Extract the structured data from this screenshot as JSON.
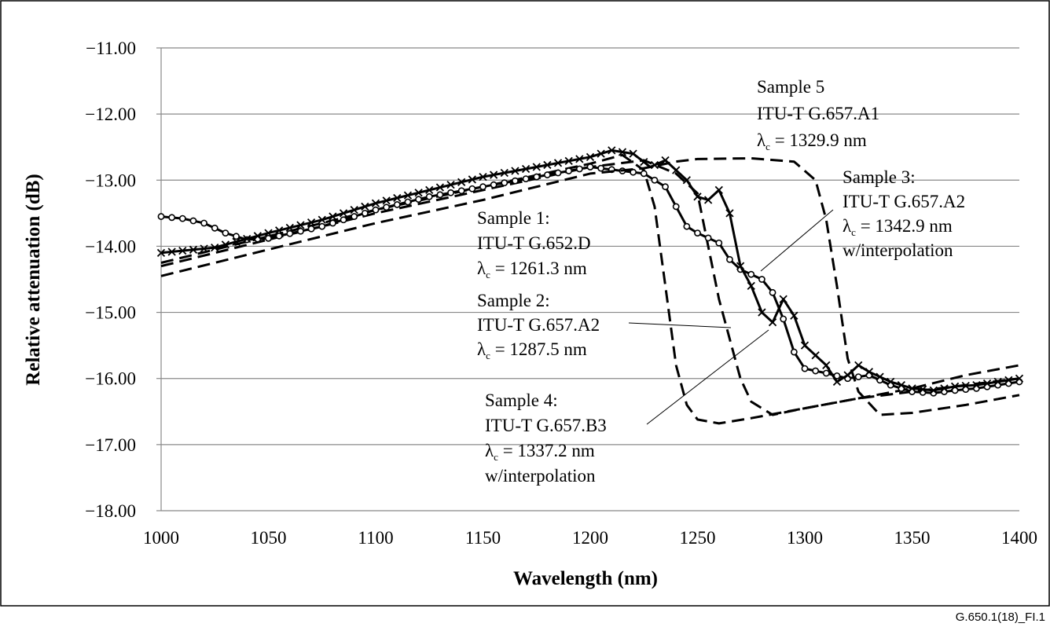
{
  "figure_id": "G.650.1(18)_FI.1",
  "chart_data": {
    "type": "line",
    "title": "",
    "xlabel": "Wavelength (nm)",
    "ylabel": "Relative attenuation (dB)",
    "xlim": [
      1000,
      1400
    ],
    "ylim": [
      -18,
      -11
    ],
    "x_ticks": [
      "1000",
      "1050",
      "1100",
      "1150",
      "1200",
      "1250",
      "1300",
      "1350",
      "1400"
    ],
    "y_ticks": [
      "−18.00",
      "−17.00",
      "−16.00",
      "−15.00",
      "−14.00",
      "−13.00",
      "−12.00",
      "−11.00"
    ],
    "grid": "horizontal",
    "series": [
      {
        "name": "Sample 1",
        "style": "dashed",
        "points": [
          [
            1000,
            -14.25
          ],
          [
            1050,
            -13.85
          ],
          [
            1100,
            -13.45
          ],
          [
            1150,
            -13.1
          ],
          [
            1200,
            -12.75
          ],
          [
            1215,
            -12.62
          ],
          [
            1225,
            -12.85
          ],
          [
            1230,
            -13.4
          ],
          [
            1235,
            -14.6
          ],
          [
            1240,
            -15.8
          ],
          [
            1245,
            -16.4
          ],
          [
            1250,
            -16.62
          ],
          [
            1260,
            -16.68
          ],
          [
            1275,
            -16.6
          ],
          [
            1300,
            -16.45
          ],
          [
            1325,
            -16.3
          ],
          [
            1350,
            -16.2
          ],
          [
            1375,
            -16.1
          ],
          [
            1400,
            -16.0
          ]
        ]
      },
      {
        "name": "Sample 2",
        "style": "dashed",
        "points": [
          [
            1000,
            -14.3
          ],
          [
            1050,
            -13.9
          ],
          [
            1100,
            -13.5
          ],
          [
            1150,
            -13.15
          ],
          [
            1200,
            -12.8
          ],
          [
            1225,
            -12.7
          ],
          [
            1240,
            -12.9
          ],
          [
            1250,
            -13.2
          ],
          [
            1255,
            -14.0
          ],
          [
            1260,
            -14.8
          ],
          [
            1265,
            -15.4
          ],
          [
            1270,
            -16.0
          ],
          [
            1275,
            -16.35
          ],
          [
            1285,
            -16.55
          ],
          [
            1300,
            -16.45
          ],
          [
            1325,
            -16.3
          ],
          [
            1350,
            -16.15
          ],
          [
            1375,
            -15.95
          ],
          [
            1400,
            -15.8
          ]
        ]
      },
      {
        "name": "Sample 3",
        "style": "line-circle",
        "points": [
          [
            1000,
            -13.55
          ],
          [
            1010,
            -13.58
          ],
          [
            1020,
            -13.65
          ],
          [
            1030,
            -13.8
          ],
          [
            1040,
            -13.9
          ],
          [
            1050,
            -13.88
          ],
          [
            1075,
            -13.7
          ],
          [
            1100,
            -13.45
          ],
          [
            1125,
            -13.25
          ],
          [
            1150,
            -13.1
          ],
          [
            1175,
            -12.95
          ],
          [
            1200,
            -12.8
          ],
          [
            1225,
            -12.9
          ],
          [
            1235,
            -13.1
          ],
          [
            1240,
            -13.4
          ],
          [
            1245,
            -13.7
          ],
          [
            1250,
            -13.8
          ],
          [
            1260,
            -13.95
          ],
          [
            1265,
            -14.2
          ],
          [
            1270,
            -14.35
          ],
          [
            1280,
            -14.5
          ],
          [
            1285,
            -14.7
          ],
          [
            1290,
            -15.1
          ],
          [
            1295,
            -15.6
          ],
          [
            1300,
            -15.85
          ],
          [
            1310,
            -15.92
          ],
          [
            1320,
            -16.0
          ],
          [
            1330,
            -15.95
          ],
          [
            1340,
            -16.1
          ],
          [
            1350,
            -16.2
          ],
          [
            1360,
            -16.22
          ],
          [
            1370,
            -16.18
          ],
          [
            1380,
            -16.15
          ],
          [
            1390,
            -16.1
          ],
          [
            1400,
            -16.05
          ]
        ]
      },
      {
        "name": "Sample 4",
        "style": "line-cross",
        "points": [
          [
            1000,
            -14.1
          ],
          [
            1025,
            -14.02
          ],
          [
            1050,
            -13.8
          ],
          [
            1075,
            -13.6
          ],
          [
            1100,
            -13.35
          ],
          [
            1125,
            -13.15
          ],
          [
            1150,
            -12.95
          ],
          [
            1175,
            -12.8
          ],
          [
            1200,
            -12.65
          ],
          [
            1210,
            -12.55
          ],
          [
            1220,
            -12.6
          ],
          [
            1228,
            -12.8
          ],
          [
            1235,
            -12.7
          ],
          [
            1245,
            -13.0
          ],
          [
            1250,
            -13.25
          ],
          [
            1255,
            -13.3
          ],
          [
            1260,
            -13.15
          ],
          [
            1265,
            -13.5
          ],
          [
            1270,
            -14.3
          ],
          [
            1275,
            -14.6
          ],
          [
            1280,
            -15.0
          ],
          [
            1285,
            -15.15
          ],
          [
            1290,
            -14.8
          ],
          [
            1295,
            -15.05
          ],
          [
            1300,
            -15.5
          ],
          [
            1305,
            -15.65
          ],
          [
            1310,
            -15.8
          ],
          [
            1315,
            -16.05
          ],
          [
            1320,
            -15.95
          ],
          [
            1325,
            -15.8
          ],
          [
            1330,
            -15.9
          ],
          [
            1340,
            -16.05
          ],
          [
            1350,
            -16.15
          ],
          [
            1360,
            -16.18
          ],
          [
            1370,
            -16.12
          ],
          [
            1380,
            -16.1
          ],
          [
            1390,
            -16.05
          ],
          [
            1400,
            -16.0
          ]
        ]
      },
      {
        "name": "Sample 5",
        "style": "dashed",
        "points": [
          [
            1000,
            -14.45
          ],
          [
            1050,
            -14.05
          ],
          [
            1100,
            -13.65
          ],
          [
            1150,
            -13.3
          ],
          [
            1200,
            -12.9
          ],
          [
            1225,
            -12.82
          ],
          [
            1240,
            -12.72
          ],
          [
            1250,
            -12.68
          ],
          [
            1275,
            -12.67
          ],
          [
            1295,
            -12.72
          ],
          [
            1305,
            -13.0
          ],
          [
            1310,
            -13.6
          ],
          [
            1315,
            -14.6
          ],
          [
            1320,
            -15.7
          ],
          [
            1325,
            -16.2
          ],
          [
            1335,
            -16.55
          ],
          [
            1350,
            -16.52
          ],
          [
            1375,
            -16.4
          ],
          [
            1400,
            -16.25
          ]
        ]
      }
    ],
    "annotations": [
      {
        "lines": [
          "Sample 5",
          "ITU-T G.657.A1",
          "λc = 1329.9 nm"
        ]
      },
      {
        "lines": [
          "Sample 3:",
          "ITU-T G.657.A2",
          "λc = 1342.9 nm",
          "w/interpolation"
        ]
      },
      {
        "lines": [
          "Sample 1:",
          "ITU-T G.652.D",
          "λc = 1261.3 nm"
        ]
      },
      {
        "lines": [
          "Sample 2:",
          "ITU-T G.657.A2",
          "λc = 1287.5 nm"
        ]
      },
      {
        "lines": [
          "Sample 4:",
          "ITU-T G.657.B3",
          "λc = 1337.2 nm",
          "w/interpolation"
        ]
      }
    ]
  }
}
